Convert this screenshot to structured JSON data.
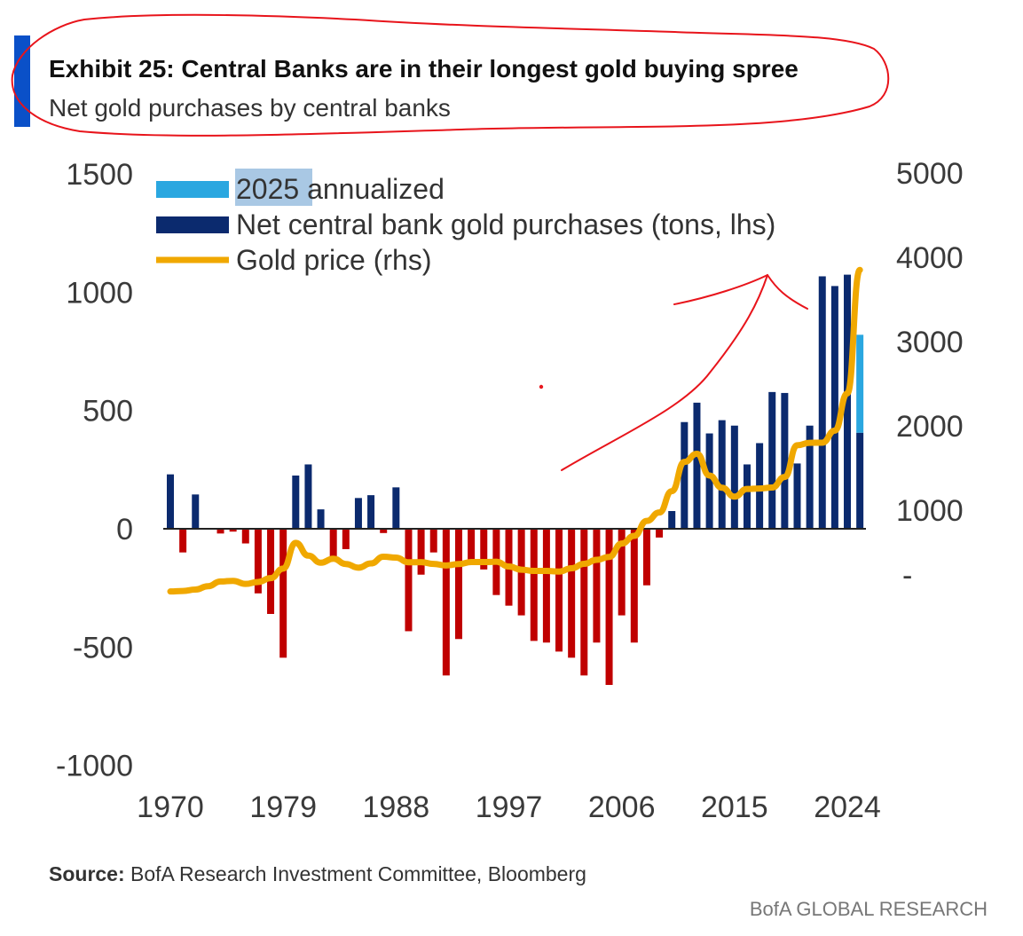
{
  "header": {
    "title": "Exhibit 25: Central Banks are in their longest gold buying spree",
    "subtitle": "Net gold purchases by central banks"
  },
  "footer": {
    "source_label": "Source:",
    "source_text": " BofA Research Investment Committee, Bloomberg",
    "brand": "BofA GLOBAL RESEARCH"
  },
  "colors": {
    "accent_bar": "#0a50c8",
    "positive": "#0b2a6e",
    "negative": "#c00000",
    "annualized": "#2aa7e0",
    "gold_line": "#f0a800",
    "annotation": "#e8141b",
    "highlight": "#a9c8e4"
  },
  "chart_data": {
    "type": "bar",
    "title": "Exhibit 25: Central Banks are in their longest gold buying spree",
    "subtitle": "Net gold purchases by central banks",
    "legend": [
      {
        "label_highlight": "2025",
        "label_rest": " annualized",
        "kind": "bar",
        "color": "#2aa7e0"
      },
      {
        "label": "Net central bank gold purchases (tons, lhs)",
        "kind": "bar",
        "color": "#0b2a6e"
      },
      {
        "label": "Gold price (rhs)",
        "kind": "line",
        "color": "#f0a800"
      }
    ],
    "legend_placement": "top-left",
    "x": [
      1970,
      1971,
      1972,
      1973,
      1974,
      1975,
      1976,
      1977,
      1978,
      1979,
      1980,
      1981,
      1982,
      1983,
      1984,
      1985,
      1986,
      1987,
      1988,
      1989,
      1990,
      1991,
      1992,
      1993,
      1994,
      1995,
      1996,
      1997,
      1998,
      1999,
      2000,
      2001,
      2002,
      2003,
      2004,
      2005,
      2006,
      2007,
      2008,
      2009,
      2010,
      2011,
      2012,
      2013,
      2014,
      2015,
      2016,
      2017,
      2018,
      2019,
      2020,
      2021,
      2022,
      2023,
      2024,
      2025
    ],
    "x_ticks": [
      "1970",
      "1979",
      "1988",
      "1997",
      "2006",
      "2015",
      "2024"
    ],
    "series": [
      {
        "name": "Net central bank gold purchases (tons, lhs)",
        "axis": "left",
        "values": [
          230,
          -100,
          145,
          0,
          -20,
          -12,
          -62,
          -273,
          -360,
          -545,
          225,
          272,
          82,
          -138,
          -86,
          130,
          142,
          -18,
          175,
          -433,
          -194,
          -100,
          -620,
          -466,
          -130,
          -172,
          -280,
          -325,
          -366,
          -474,
          -481,
          -519,
          -545,
          -620,
          -481,
          -660,
          -366,
          -481,
          -239,
          -37,
          75,
          451,
          533,
          403,
          459,
          436,
          272,
          362,
          578,
          574,
          276,
          436,
          1067,
          1026,
          1074,
          406
        ]
      },
      {
        "name": "2025 annualized",
        "axis": "left",
        "year": 2025,
        "value": 820
      },
      {
        "name": "Gold price (rhs)",
        "axis": "right",
        "values": [
          35,
          41,
          58,
          97,
          154,
          161,
          125,
          148,
          193,
          307,
          612,
          460,
          376,
          424,
          361,
          317,
          368,
          447,
          437,
          381,
          383,
          362,
          344,
          360,
          384,
          384,
          388,
          331,
          294,
          279,
          279,
          271,
          310,
          363,
          410,
          445,
          604,
          695,
          872,
          972,
          1225,
          1572,
          1669,
          1411,
          1266,
          1160,
          1251,
          1257,
          1268,
          1393,
          1770,
          1799,
          1800,
          1943,
          2386,
          3850
        ]
      }
    ],
    "ylim_left": [
      -1000,
      1500
    ],
    "yticks_left": [
      "1500",
      "1000",
      "500",
      "0",
      "-500",
      "-1000"
    ],
    "ylim_right": [
      0,
      5000
    ],
    "yticks_right": [
      "5000",
      "4000",
      "3000",
      "2000",
      "1000",
      "-"
    ],
    "xlabel": "",
    "ylabel": "",
    "grid": false
  }
}
